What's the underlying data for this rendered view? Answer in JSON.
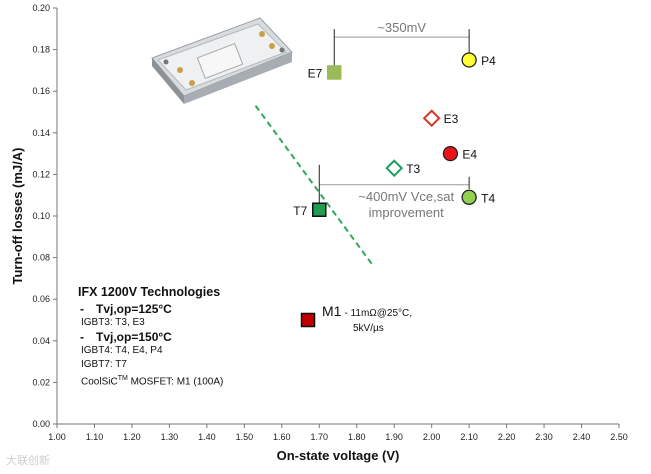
{
  "chart_data": {
    "type": "scatter",
    "xlabel": "On-state voltage (V)",
    "ylabel": "Turn-off losses  (mJ/A)",
    "xlim": [
      1.0,
      2.5
    ],
    "ylim": [
      0.0,
      0.2
    ],
    "x_ticks": [
      "1.00",
      "1.10",
      "1.20",
      "1.30",
      "1.40",
      "1.50",
      "1.60",
      "1.70",
      "1.80",
      "1.90",
      "2.00",
      "2.10",
      "2.20",
      "2.30",
      "2.40",
      "2.50"
    ],
    "y_ticks": [
      "0.00",
      "0.02",
      "0.04",
      "0.06",
      "0.08",
      "0.10",
      "0.12",
      "0.14",
      "0.16",
      "0.18",
      "0.20"
    ],
    "grid": false,
    "points": [
      {
        "name": "E7",
        "x": 1.74,
        "y": 0.169,
        "marker": "square",
        "color": "#9bbb59",
        "stroke": "#9bbb59",
        "label_side": "left"
      },
      {
        "name": "P4",
        "x": 2.1,
        "y": 0.175,
        "marker": "circle",
        "color": "#ffff33",
        "stroke": "#222222",
        "label_side": "right"
      },
      {
        "name": "E3",
        "x": 2.0,
        "y": 0.147,
        "marker": "diamond",
        "color": "#ffffff",
        "stroke": "#d9362b",
        "label_side": "right"
      },
      {
        "name": "E4",
        "x": 2.05,
        "y": 0.13,
        "marker": "circle",
        "color": "#e8141a",
        "stroke": "#222222",
        "label_side": "right"
      },
      {
        "name": "T3",
        "x": 1.9,
        "y": 0.123,
        "marker": "diamond",
        "color": "#ffffff",
        "stroke": "#1e9e5a",
        "label_side": "right"
      },
      {
        "name": "T4",
        "x": 2.1,
        "y": 0.109,
        "marker": "circle",
        "color": "#92d050",
        "stroke": "#222222",
        "label_side": "right"
      },
      {
        "name": "T7",
        "x": 1.7,
        "y": 0.103,
        "marker": "square",
        "color": "#1e9e4e",
        "stroke": "#111111",
        "label_side": "left"
      },
      {
        "name": "M1",
        "x": 1.67,
        "y": 0.05,
        "marker": "square",
        "color": "#c00000",
        "stroke": "#111111",
        "label_side": "right"
      }
    ],
    "trend_line": {
      "style": "dashed",
      "color": "#2eaa58",
      "x": [
        1.53,
        1.84
      ],
      "y": [
        0.153,
        0.077
      ]
    },
    "annotations": {
      "top": {
        "text": "~350mV",
        "x_from": 1.74,
        "x_to": 2.1,
        "y": 0.186
      },
      "middle": {
        "line1": "~400mV Vce,sat",
        "line2": "improvement",
        "x_from": 1.7,
        "x_to": 2.1,
        "y": 0.115
      }
    }
  },
  "legend": {
    "title": "IFX 1200V Technologies",
    "group1_head": "Tvj,op=125°C",
    "group1_items": "IGBT3: T3, E3",
    "group2_head": "Tvj,op=150°C",
    "group2_items": "IGBT4: T4, E4, P4",
    "group2_items2": "IGBT7: T7",
    "coolsic_prefix": "CoolSiC",
    "coolsic_sup": "TM",
    "coolsic_suffix": " MOSFET: M1 (100A)",
    "dash": "-"
  },
  "m1_note": {
    "name": "M1",
    "line1": "- 11mΩ@25°C,",
    "line2": "5kV/µs"
  },
  "watermark": "大联创新"
}
